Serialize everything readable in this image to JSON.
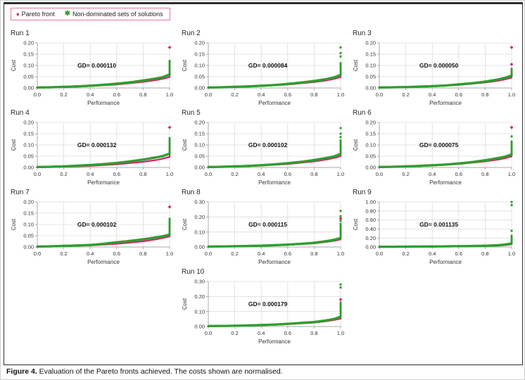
{
  "figure": {
    "caption_bold": "Figure 4.",
    "caption_text": " Evaluation of the Pareto fronts achieved. The costs shown are normalised."
  },
  "legend": {
    "items": [
      {
        "label": "Pareto front",
        "icon": "diamond-icon",
        "glyph": "♦",
        "color": "#d6246e"
      },
      {
        "label": "Non-dominated sets of solutions",
        "icon": "asterisk-icon",
        "glyph": "✱",
        "color": "#2f9e2f"
      }
    ],
    "border_color": "#f0729f"
  },
  "colors": {
    "pareto": "#d6246e",
    "nondominated": "#2f9e2f",
    "grid": "#dcdcdc",
    "axis": "#a8a8a8",
    "text": "#333333"
  },
  "chart_data": [
    {
      "type": "scatter",
      "title": "Run 1",
      "xlabel": "Performance",
      "ylabel": "Cost",
      "annotation": "GD= 0.000110",
      "xlim": [
        0,
        1
      ],
      "ylim": [
        0,
        0.2
      ],
      "xticklabels": [
        "0.0",
        "0.2",
        "0.4",
        "0.6",
        "0.8",
        "1.0"
      ],
      "yticklabels": [
        "0.00",
        "0.05",
        "0.10",
        "0.15",
        "0.20"
      ],
      "nd_front": [
        [
          0,
          0.002
        ],
        [
          0.1,
          0.003
        ],
        [
          0.2,
          0.005
        ],
        [
          0.3,
          0.007
        ],
        [
          0.4,
          0.01
        ],
        [
          0.5,
          0.014
        ],
        [
          0.6,
          0.019
        ],
        [
          0.7,
          0.025
        ],
        [
          0.8,
          0.033
        ],
        [
          0.9,
          0.042
        ],
        [
          0.95,
          0.048
        ],
        [
          1,
          0.06
        ],
        [
          1,
          0.12
        ]
      ],
      "pareto_front": [
        [
          0,
          0.001
        ],
        [
          0.2,
          0.004
        ],
        [
          0.4,
          0.008
        ],
        [
          0.6,
          0.015
        ],
        [
          0.8,
          0.027
        ],
        [
          0.9,
          0.035
        ],
        [
          0.95,
          0.041
        ],
        [
          1,
          0.048
        ],
        [
          1,
          0.1
        ]
      ],
      "outliers": [
        {
          "series": "pareto",
          "x": 1.0,
          "y": 0.18
        }
      ]
    },
    {
      "type": "scatter",
      "title": "Run 2",
      "xlabel": "Performance",
      "ylabel": "Cost",
      "annotation": "GD= 0.000084",
      "xlim": [
        0,
        1
      ],
      "ylim": [
        0,
        0.2
      ],
      "xticklabels": [
        "0.0",
        "0.2",
        "0.4",
        "0.6",
        "0.8",
        "1.0"
      ],
      "yticklabels": [
        "0.00",
        "0.05",
        "0.10",
        "0.15",
        "0.20"
      ],
      "nd_front": [
        [
          0,
          0.002
        ],
        [
          0.1,
          0.003
        ],
        [
          0.2,
          0.005
        ],
        [
          0.3,
          0.007
        ],
        [
          0.4,
          0.01
        ],
        [
          0.5,
          0.013
        ],
        [
          0.6,
          0.018
        ],
        [
          0.7,
          0.024
        ],
        [
          0.8,
          0.031
        ],
        [
          0.9,
          0.04
        ],
        [
          0.95,
          0.047
        ],
        [
          1,
          0.058
        ],
        [
          1,
          0.11
        ]
      ],
      "pareto_front": [
        [
          0,
          0.001
        ],
        [
          0.2,
          0.004
        ],
        [
          0.4,
          0.008
        ],
        [
          0.6,
          0.015
        ],
        [
          0.8,
          0.026
        ],
        [
          0.9,
          0.034
        ],
        [
          0.95,
          0.04
        ],
        [
          1,
          0.048
        ],
        [
          1,
          0.09
        ]
      ],
      "outliers": [
        {
          "series": "nd",
          "x": 1.0,
          "y": 0.14
        },
        {
          "series": "nd",
          "x": 1.0,
          "y": 0.155
        },
        {
          "series": "nd",
          "x": 1.0,
          "y": 0.18
        }
      ]
    },
    {
      "type": "scatter",
      "title": "Run 3",
      "xlabel": "Performance",
      "ylabel": "Cost",
      "annotation": "GD= 0.000050",
      "xlim": [
        0,
        1
      ],
      "ylim": [
        0,
        0.2
      ],
      "xticklabels": [
        "0.0",
        "0.2",
        "0.4",
        "0.6",
        "0.8",
        "1.0"
      ],
      "yticklabels": [
        "0.00",
        "0.05",
        "0.10",
        "0.15",
        "0.20"
      ],
      "nd_front": [
        [
          0,
          0.002
        ],
        [
          0.2,
          0.004
        ],
        [
          0.3,
          0.006
        ],
        [
          0.4,
          0.008
        ],
        [
          0.5,
          0.011
        ],
        [
          0.6,
          0.016
        ],
        [
          0.7,
          0.021
        ],
        [
          0.8,
          0.028
        ],
        [
          0.9,
          0.038
        ],
        [
          0.95,
          0.045
        ],
        [
          1,
          0.055
        ],
        [
          1,
          0.085
        ]
      ],
      "pareto_front": [
        [
          0,
          0.001
        ],
        [
          0.2,
          0.003
        ],
        [
          0.4,
          0.007
        ],
        [
          0.6,
          0.013
        ],
        [
          0.8,
          0.024
        ],
        [
          0.9,
          0.032
        ],
        [
          0.95,
          0.038
        ],
        [
          1,
          0.046
        ],
        [
          1,
          0.07
        ]
      ],
      "outliers": [
        {
          "series": "pareto",
          "x": 1.0,
          "y": 0.105
        },
        {
          "series": "pareto",
          "x": 1.0,
          "y": 0.18
        }
      ]
    },
    {
      "type": "scatter",
      "title": "Run 4",
      "xlabel": "Performance",
      "ylabel": "Cost",
      "annotation": "GD= 0.000132",
      "xlim": [
        0,
        1
      ],
      "ylim": [
        0,
        0.2
      ],
      "xticklabels": [
        "0.0",
        "0.2",
        "0.4",
        "0.6",
        "0.8",
        "1.0"
      ],
      "yticklabels": [
        "0.00",
        "0.05",
        "0.10",
        "0.15",
        "0.20"
      ],
      "nd_front": [
        [
          0,
          0.002
        ],
        [
          0.1,
          0.003
        ],
        [
          0.2,
          0.005
        ],
        [
          0.3,
          0.008
        ],
        [
          0.4,
          0.011
        ],
        [
          0.5,
          0.015
        ],
        [
          0.6,
          0.02
        ],
        [
          0.7,
          0.027
        ],
        [
          0.8,
          0.035
        ],
        [
          0.9,
          0.045
        ],
        [
          0.95,
          0.051
        ],
        [
          1,
          0.062
        ],
        [
          1,
          0.13
        ]
      ],
      "pareto_front": [
        [
          0,
          0.001
        ],
        [
          0.2,
          0.003
        ],
        [
          0.4,
          0.007
        ],
        [
          0.6,
          0.014
        ],
        [
          0.8,
          0.025
        ],
        [
          0.9,
          0.033
        ],
        [
          0.95,
          0.039
        ],
        [
          1,
          0.047
        ],
        [
          1,
          0.1
        ]
      ],
      "outliers": [
        {
          "series": "pareto",
          "x": 1.0,
          "y": 0.178
        }
      ]
    },
    {
      "type": "scatter",
      "title": "Run 5",
      "xlabel": "Performance",
      "ylabel": "Cost",
      "annotation": "GD= 0.000102",
      "xlim": [
        0,
        1
      ],
      "ylim": [
        0,
        0.2
      ],
      "xticklabels": [
        "0.0",
        "0.2",
        "0.4",
        "0.6",
        "0.8",
        "1.0"
      ],
      "yticklabels": [
        "0.00",
        "0.05",
        "0.10",
        "0.15",
        "0.20"
      ],
      "nd_front": [
        [
          0,
          0.002
        ],
        [
          0.1,
          0.003
        ],
        [
          0.2,
          0.005
        ],
        [
          0.3,
          0.007
        ],
        [
          0.4,
          0.01
        ],
        [
          0.5,
          0.014
        ],
        [
          0.6,
          0.019
        ],
        [
          0.7,
          0.025
        ],
        [
          0.8,
          0.033
        ],
        [
          0.9,
          0.043
        ],
        [
          0.95,
          0.049
        ],
        [
          1,
          0.06
        ],
        [
          1,
          0.12
        ]
      ],
      "pareto_front": [
        [
          0,
          0.001
        ],
        [
          0.2,
          0.004
        ],
        [
          0.4,
          0.008
        ],
        [
          0.6,
          0.015
        ],
        [
          0.8,
          0.027
        ],
        [
          0.9,
          0.036
        ],
        [
          0.95,
          0.042
        ],
        [
          1,
          0.05
        ],
        [
          1,
          0.095
        ]
      ],
      "outliers": [
        {
          "series": "nd",
          "x": 1.0,
          "y": 0.135
        },
        {
          "series": "nd",
          "x": 1.0,
          "y": 0.15
        },
        {
          "series": "nd",
          "x": 1.0,
          "y": 0.175
        }
      ]
    },
    {
      "type": "scatter",
      "title": "Run 6",
      "xlabel": "Performance",
      "ylabel": "Cost",
      "annotation": "GD= 0.000075",
      "xlim": [
        0,
        1
      ],
      "ylim": [
        0,
        0.2
      ],
      "xticklabels": [
        "0.0",
        "0.2",
        "0.4",
        "0.6",
        "0.8",
        "1.0"
      ],
      "yticklabels": [
        "0.00",
        "0.05",
        "0.10",
        "0.15",
        "0.20"
      ],
      "nd_front": [
        [
          0,
          0.002
        ],
        [
          0.1,
          0.003
        ],
        [
          0.2,
          0.005
        ],
        [
          0.3,
          0.007
        ],
        [
          0.4,
          0.01
        ],
        [
          0.5,
          0.013
        ],
        [
          0.6,
          0.018
        ],
        [
          0.7,
          0.024
        ],
        [
          0.8,
          0.032
        ],
        [
          0.9,
          0.042
        ],
        [
          0.95,
          0.048
        ],
        [
          1,
          0.058
        ],
        [
          1,
          0.115
        ]
      ],
      "pareto_front": [
        [
          0,
          0.001
        ],
        [
          0.2,
          0.004
        ],
        [
          0.4,
          0.008
        ],
        [
          0.6,
          0.015
        ],
        [
          0.8,
          0.027
        ],
        [
          0.9,
          0.035
        ],
        [
          0.95,
          0.041
        ],
        [
          1,
          0.049
        ],
        [
          1,
          0.09
        ]
      ],
      "outliers": [
        {
          "series": "nd",
          "x": 1.0,
          "y": 0.138
        },
        {
          "series": "pareto",
          "x": 1.0,
          "y": 0.178
        }
      ]
    },
    {
      "type": "scatter",
      "title": "Run 7",
      "xlabel": "Performance",
      "ylabel": "Cost",
      "annotation": "GD= 0.000102",
      "xlim": [
        0,
        1
      ],
      "ylim": [
        0,
        0.2
      ],
      "xticklabels": [
        "0.0",
        "0.2",
        "0.4",
        "0.6",
        "0.8",
        "1.0"
      ],
      "yticklabels": [
        "0.00",
        "0.05",
        "0.10",
        "0.15",
        "0.20"
      ],
      "nd_front": [
        [
          0,
          0.002
        ],
        [
          0.1,
          0.003
        ],
        [
          0.2,
          0.005
        ],
        [
          0.3,
          0.007
        ],
        [
          0.4,
          0.009
        ],
        [
          0.5,
          0.014
        ],
        [
          0.55,
          0.018
        ],
        [
          0.6,
          0.021
        ],
        [
          0.7,
          0.027
        ],
        [
          0.8,
          0.034
        ],
        [
          0.9,
          0.043
        ],
        [
          0.95,
          0.048
        ],
        [
          1,
          0.055
        ],
        [
          1,
          0.125
        ]
      ],
      "pareto_front": [
        [
          0,
          0.001
        ],
        [
          0.2,
          0.004
        ],
        [
          0.4,
          0.007
        ],
        [
          0.6,
          0.014
        ],
        [
          0.8,
          0.025
        ],
        [
          0.9,
          0.034
        ],
        [
          0.95,
          0.04
        ],
        [
          1,
          0.047
        ],
        [
          1,
          0.1
        ]
      ],
      "outliers": [
        {
          "series": "pareto",
          "x": 1.0,
          "y": 0.178
        }
      ]
    },
    {
      "type": "scatter",
      "title": "Run 8",
      "xlabel": "Performance",
      "ylabel": "Cost",
      "annotation": "GD= 0.000115",
      "xlim": [
        0,
        1
      ],
      "ylim": [
        0,
        0.3
      ],
      "xticklabels": [
        "0.0",
        "0.2",
        "0.4",
        "0.6",
        "0.8",
        "1.0"
      ],
      "yticklabels": [
        "0.00",
        "0.10",
        "0.20",
        "0.30"
      ],
      "nd_front": [
        [
          0,
          0.003
        ],
        [
          0.2,
          0.005
        ],
        [
          0.4,
          0.009
        ],
        [
          0.5,
          0.012
        ],
        [
          0.6,
          0.016
        ],
        [
          0.7,
          0.021
        ],
        [
          0.8,
          0.028
        ],
        [
          0.9,
          0.04
        ],
        [
          0.95,
          0.048
        ],
        [
          1,
          0.06
        ],
        [
          1,
          0.155
        ]
      ],
      "pareto_front": [
        [
          0,
          0.002
        ],
        [
          0.2,
          0.004
        ],
        [
          0.4,
          0.008
        ],
        [
          0.6,
          0.014
        ],
        [
          0.8,
          0.024
        ],
        [
          0.9,
          0.034
        ],
        [
          0.95,
          0.041
        ],
        [
          1,
          0.05
        ],
        [
          1,
          0.12
        ]
      ],
      "outliers": [
        {
          "series": "nd",
          "x": 1.0,
          "y": 0.175
        },
        {
          "series": "pareto",
          "x": 1.0,
          "y": 0.19
        },
        {
          "series": "nd",
          "x": 1.0,
          "y": 0.205
        },
        {
          "series": "nd",
          "x": 1.0,
          "y": 0.24
        }
      ]
    },
    {
      "type": "scatter",
      "title": "Run 9",
      "xlabel": "Performance",
      "ylabel": "Cost",
      "annotation": "GD= 0.001135",
      "xlim": [
        0,
        1
      ],
      "ylim": [
        0,
        1.0
      ],
      "xticklabels": [
        "0.0",
        "0.2",
        "0.4",
        "0.6",
        "0.8",
        "1.0"
      ],
      "yticklabels": [
        "0.00",
        "0.20",
        "0.40",
        "0.60",
        "0.80",
        "1.00"
      ],
      "nd_front": [
        [
          0,
          0.005
        ],
        [
          0.2,
          0.008
        ],
        [
          0.4,
          0.012
        ],
        [
          0.6,
          0.018
        ],
        [
          0.8,
          0.028
        ],
        [
          0.9,
          0.04
        ],
        [
          0.95,
          0.055
        ],
        [
          1,
          0.08
        ],
        [
          1,
          0.25
        ]
      ],
      "pareto_front": [
        [
          0,
          0.003
        ],
        [
          0.2,
          0.006
        ],
        [
          0.4,
          0.01
        ],
        [
          0.6,
          0.015
        ],
        [
          0.8,
          0.022
        ],
        [
          0.9,
          0.03
        ],
        [
          0.95,
          0.04
        ],
        [
          1,
          0.06
        ],
        [
          1,
          0.15
        ]
      ],
      "outliers": [
        {
          "series": "nd",
          "x": 1.0,
          "y": 0.36
        },
        {
          "series": "nd",
          "x": 1.0,
          "y": 0.93
        },
        {
          "series": "nd",
          "x": 1.0,
          "y": 1.0
        }
      ]
    },
    {
      "type": "scatter",
      "title": "Run 10",
      "xlabel": "Performance",
      "ylabel": "Cost",
      "annotation": "GD= 0.000179",
      "xlim": [
        0,
        1
      ],
      "ylim": [
        0,
        0.3
      ],
      "xticklabels": [
        "0.0",
        "0.2",
        "0.4",
        "0.6",
        "0.8",
        "1.0"
      ],
      "yticklabels": [
        "0.00",
        "0.10",
        "0.20",
        "0.30"
      ],
      "nd_front": [
        [
          0,
          0.003
        ],
        [
          0.2,
          0.005
        ],
        [
          0.4,
          0.01
        ],
        [
          0.5,
          0.013
        ],
        [
          0.6,
          0.018
        ],
        [
          0.7,
          0.024
        ],
        [
          0.8,
          0.03
        ],
        [
          0.9,
          0.042
        ],
        [
          0.95,
          0.05
        ],
        [
          1,
          0.065
        ],
        [
          1,
          0.16
        ]
      ],
      "pareto_front": [
        [
          0,
          0.002
        ],
        [
          0.2,
          0.004
        ],
        [
          0.4,
          0.008
        ],
        [
          0.6,
          0.015
        ],
        [
          0.8,
          0.026
        ],
        [
          0.9,
          0.036
        ],
        [
          0.95,
          0.043
        ],
        [
          1,
          0.052
        ],
        [
          1,
          0.12
        ]
      ],
      "outliers": [
        {
          "series": "pareto",
          "x": 1.0,
          "y": 0.18
        },
        {
          "series": "nd",
          "x": 1.0,
          "y": 0.26
        },
        {
          "series": "nd",
          "x": 1.0,
          "y": 0.28
        }
      ]
    }
  ]
}
